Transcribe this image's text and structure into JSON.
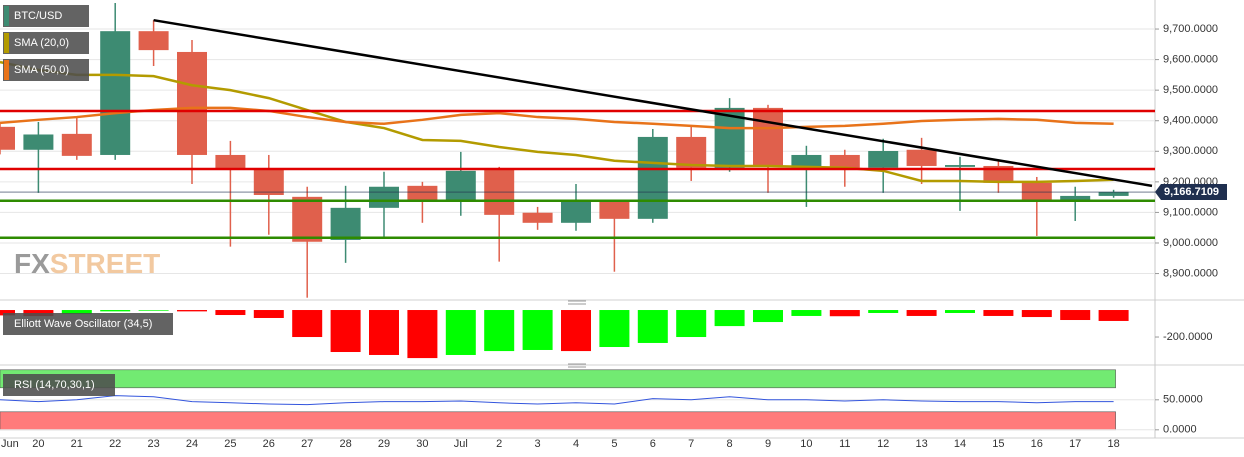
{
  "chart_data": [
    {
      "type": "candlestick",
      "categories": [
        "Jun",
        "20",
        "21",
        "22",
        "23",
        "24",
        "25",
        "26",
        "27",
        "28",
        "29",
        "30",
        "Jul",
        "2",
        "3",
        "4",
        "5",
        "6",
        "7",
        "8",
        "9",
        "10",
        "11",
        "12",
        "13",
        "14",
        "15",
        "16",
        "17",
        "18"
      ],
      "series": [
        {
          "name": "BTC/USD",
          "type": "candlestick",
          "up_color": "#3d8b72",
          "down_color": "#e0604c",
          "open": [
            9380,
            9305,
            9357,
            9288,
            9693,
            9625,
            9288,
            9239,
            9151,
            9010,
            9115,
            9187,
            9138,
            9242,
            9099,
            9066,
            9135,
            9079,
            9347,
            9246,
            9442,
            9246,
            9288,
            9246,
            9305,
            9249,
            9252,
            9197,
            9138,
            9154
          ],
          "high": [
            9390,
            9396,
            9412,
            9785,
            9729,
            9664,
            9334,
            9288,
            9184,
            9187,
            9233,
            9200,
            9298,
            9249,
            9118,
            9193,
            9141,
            9373,
            9383,
            9474,
            9452,
            9318,
            9305,
            9341,
            9344,
            9282,
            9272,
            9216,
            9184,
            9174
          ],
          "low": [
            9290,
            9164,
            9272,
            9272,
            9579,
            9193,
            8988,
            9027,
            8821,
            8935,
            9017,
            9066,
            9089,
            8939,
            9043,
            9040,
            8906,
            9066,
            9203,
            9233,
            9164,
            9118,
            9184,
            9164,
            9193,
            9105,
            9164,
            9023,
            9072,
            9148
          ],
          "close": [
            9305,
            9355,
            9285,
            9693,
            9631,
            9288,
            9239,
            9157,
            9004,
            9115,
            9184,
            9138,
            9236,
            9092,
            9066,
            9135,
            9079,
            9347,
            9246,
            9442,
            9252,
            9288,
            9246,
            9301,
            9252,
            9255,
            9197,
            9138,
            9154,
            9167
          ]
        },
        {
          "name": "SMA (20,0)",
          "type": "line",
          "color": "#b39b00",
          "values": [
            9592,
            9566,
            9550,
            9550,
            9546,
            9516,
            9500,
            9474,
            9435,
            9396,
            9376,
            9337,
            9334,
            9314,
            9298,
            9288,
            9269,
            9262,
            9255,
            9252,
            9252,
            9249,
            9246,
            9236,
            9203,
            9203,
            9200,
            9200,
            9203,
            9207
          ]
        },
        {
          "name": "SMA (50,0)",
          "type": "line",
          "color": "#e8731a",
          "values": [
            9393,
            9403,
            9412,
            9425,
            9435,
            9442,
            9442,
            9432,
            9412,
            9396,
            9390,
            9403,
            9419,
            9425,
            9412,
            9406,
            9396,
            9390,
            9383,
            9376,
            9376,
            9380,
            9383,
            9390,
            9399,
            9403,
            9406,
            9403,
            9393,
            9390
          ]
        }
      ],
      "levels": [
        {
          "value": 9432,
          "color": "#e00000"
        },
        {
          "value": 9242,
          "color": "#e00000"
        },
        {
          "value": 9138,
          "color": "#2e8b00"
        },
        {
          "value": 9017,
          "color": "#2e8b00"
        }
      ],
      "trendline": {
        "x": [
          4,
          30
        ],
        "values": [
          9729,
          9187
        ],
        "color": "#000000"
      },
      "last_price": {
        "value": 9166.7109,
        "label": "9,166.7109"
      },
      "ylim": [
        8820,
        9795
      ],
      "yticks": [
        {
          "value": 8900,
          "label": "8,900.0000"
        },
        {
          "value": 9000,
          "label": "9,000.0000"
        },
        {
          "value": 9100,
          "label": "9,100.0000"
        },
        {
          "value": 9200,
          "label": "9,200.0000"
        },
        {
          "value": 9300,
          "label": "9,300.0000"
        },
        {
          "value": 9400,
          "label": "9,400.0000"
        },
        {
          "value": 9500,
          "label": "9,500.0000"
        },
        {
          "value": 9600,
          "label": "9,600.0000"
        },
        {
          "value": 9700,
          "label": "9,700.0000"
        }
      ],
      "grid": true,
      "watermark": [
        "FX",
        "STREET"
      ]
    },
    {
      "type": "bar",
      "categories": [
        "Jun",
        "20",
        "21",
        "22",
        "23",
        "24",
        "25",
        "26",
        "27",
        "28",
        "29",
        "30",
        "Jul",
        "2",
        "3",
        "4",
        "5",
        "6",
        "7",
        "8",
        "9",
        "10",
        "11",
        "12",
        "13",
        "14",
        "15",
        "16",
        "17",
        "18"
      ],
      "series": [
        {
          "name": "Elliott Wave Oscillator (34,5)",
          "values": [
            -40,
            -45,
            -30,
            -10,
            -5,
            -10,
            -37,
            -59,
            -200,
            -311,
            -333,
            -356,
            -333,
            -304,
            -296,
            -304,
            -274,
            -244,
            -200,
            -119,
            -89,
            -44,
            -46,
            -22,
            -44,
            -22,
            -44,
            -52,
            -74,
            -81
          ],
          "colors": [
            "#ff0000",
            "#ff0000",
            "#00ff00",
            "#00ff00",
            "#00ff00",
            "#ff0000",
            "#ff0000",
            "#ff0000",
            "#ff0000",
            "#ff0000",
            "#ff0000",
            "#ff0000",
            "#00ff00",
            "#00ff00",
            "#00ff00",
            "#ff0000",
            "#00ff00",
            "#00ff00",
            "#00ff00",
            "#00ff00",
            "#00ff00",
            "#00ff00",
            "#ff0000",
            "#00ff00",
            "#ff0000",
            "#00ff00",
            "#ff0000",
            "#ff0000",
            "#ff0000",
            "#ff0000"
          ]
        }
      ],
      "ylim": [
        -385,
        52
      ],
      "yticks": [
        {
          "value": -200,
          "label": "-200.0000"
        }
      ]
    },
    {
      "type": "line",
      "categories": [
        "Jun",
        "20",
        "21",
        "22",
        "23",
        "24",
        "25",
        "26",
        "27",
        "28",
        "29",
        "30",
        "Jul",
        "2",
        "3",
        "4",
        "5",
        "6",
        "7",
        "8",
        "9",
        "10",
        "11",
        "12",
        "13",
        "14",
        "15",
        "16",
        "17",
        "18"
      ],
      "series": [
        {
          "name": "RSI (14,70,30,1)",
          "color": "#3355dd",
          "values": [
            50,
            47,
            50,
            57,
            55,
            47,
            45,
            43,
            42,
            45,
            47,
            47,
            48,
            45,
            43,
            45,
            43,
            52,
            50,
            55,
            50,
            50,
            48,
            50,
            48,
            47,
            47,
            45,
            47,
            47
          ]
        }
      ],
      "bands": [
        {
          "from": 70,
          "to": 100,
          "color": "#72ea72"
        },
        {
          "from": 0,
          "to": 30,
          "color": "#ff7b7b"
        }
      ],
      "ylim": [
        -12,
        103
      ],
      "yticks": [
        {
          "value": 0,
          "label": "0.0000"
        },
        {
          "value": 50,
          "label": "50.0000"
        }
      ]
    }
  ]
}
